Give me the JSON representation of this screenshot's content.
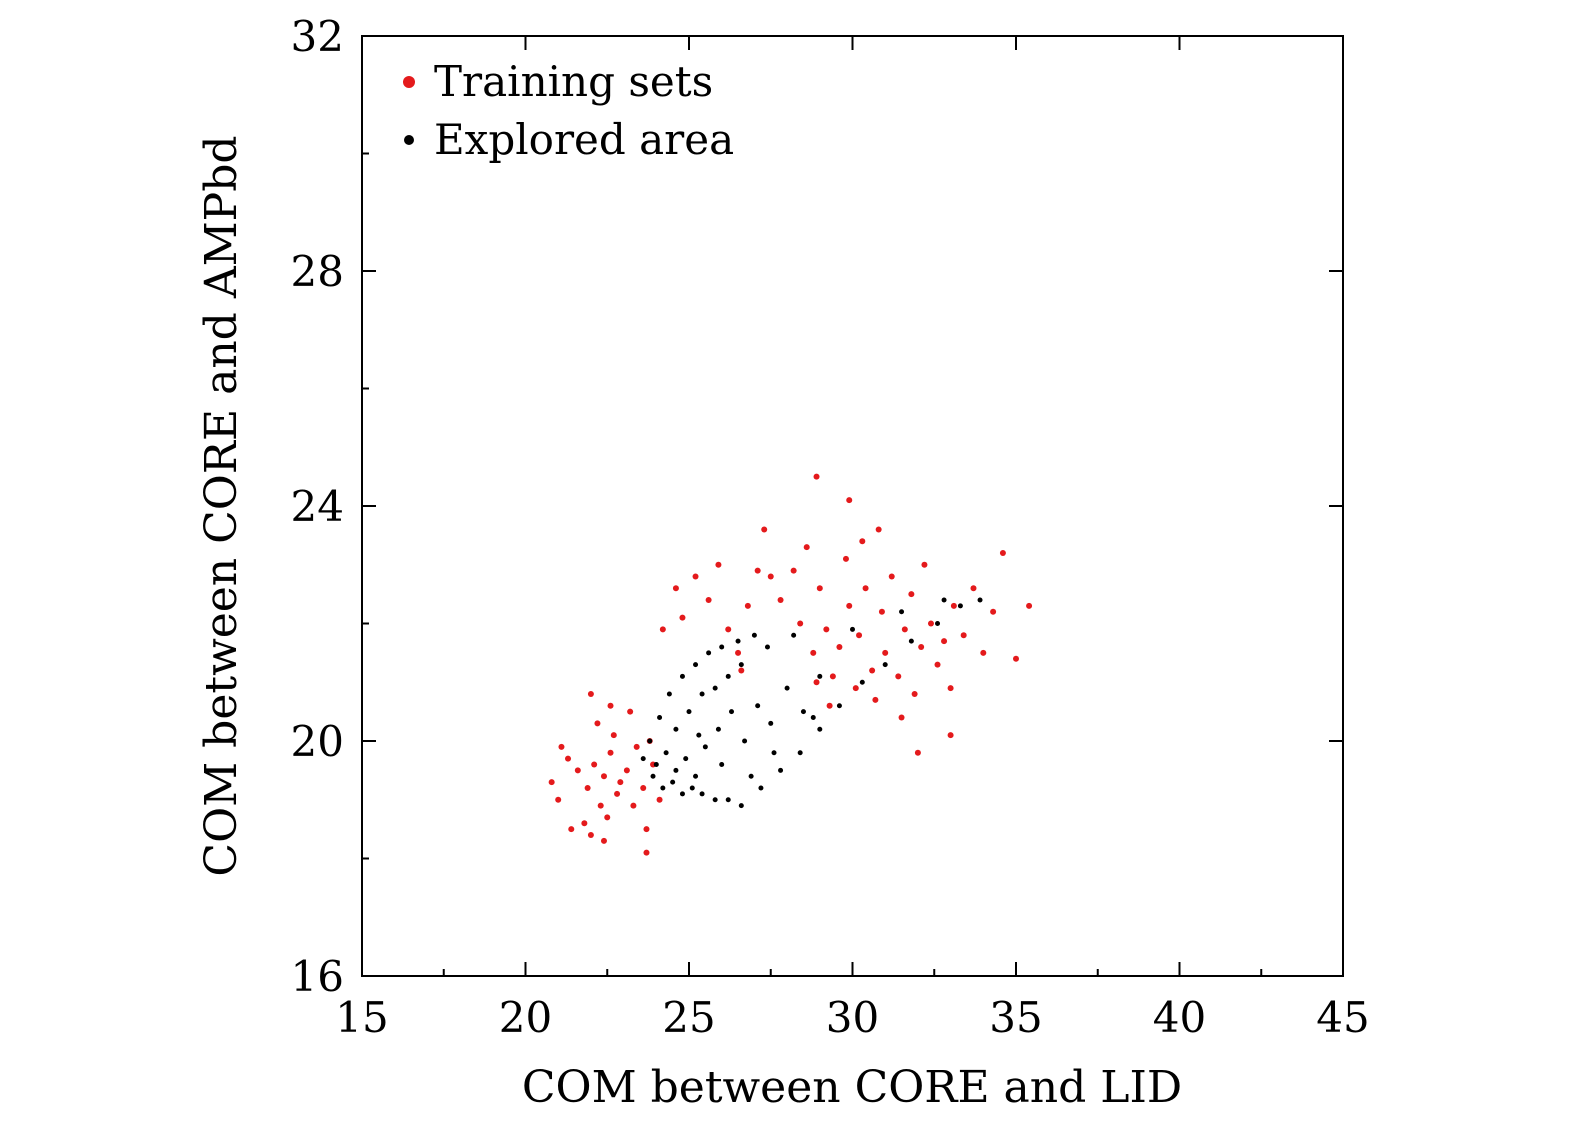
{
  "chart_data": {
    "type": "scatter",
    "xlabel": "COM between CORE and LID",
    "ylabel": "COM between CORE and AMPbd",
    "xlim": [
      15,
      45
    ],
    "ylim": [
      16,
      32
    ],
    "x_ticks": [
      15,
      20,
      25,
      30,
      35,
      40,
      45
    ],
    "x_tick_labels": [
      "15",
      "20",
      "25",
      "30",
      "35",
      "40",
      "45"
    ],
    "y_ticks": [
      16,
      20,
      24,
      28,
      32
    ],
    "y_tick_labels": [
      "16",
      "20",
      "24",
      "28",
      "32"
    ],
    "grid": false,
    "legend_position": "top-left",
    "series": [
      {
        "name": "Training sets",
        "color": "#e41a1c",
        "points": [
          [
            22.4,
            19.4
          ],
          [
            22.8,
            19.1
          ],
          [
            22.1,
            19.6
          ],
          [
            22.6,
            19.8
          ],
          [
            22.9,
            19.3
          ],
          [
            22.3,
            18.9
          ],
          [
            21.9,
            19.2
          ],
          [
            23.1,
            19.5
          ],
          [
            22.5,
            18.7
          ],
          [
            22.7,
            20.1
          ],
          [
            21.6,
            19.5
          ],
          [
            23.3,
            18.9
          ],
          [
            22.2,
            20.3
          ],
          [
            21.8,
            18.6
          ],
          [
            23.4,
            19.9
          ],
          [
            22.0,
            18.4
          ],
          [
            21.3,
            19.7
          ],
          [
            23.6,
            19.2
          ],
          [
            22.6,
            20.6
          ],
          [
            22.4,
            18.3
          ],
          [
            21.1,
            19.9
          ],
          [
            23.9,
            19.6
          ],
          [
            20.8,
            19.3
          ],
          [
            23.7,
            18.5
          ],
          [
            22.0,
            20.8
          ],
          [
            24.1,
            19.0
          ],
          [
            21.4,
            18.5
          ],
          [
            23.2,
            20.5
          ],
          [
            21.0,
            19.0
          ],
          [
            23.8,
            20.0
          ],
          [
            29.6,
            21.6
          ],
          [
            30.2,
            21.8
          ],
          [
            31.0,
            21.5
          ],
          [
            31.6,
            21.9
          ],
          [
            30.6,
            21.2
          ],
          [
            29.2,
            21.9
          ],
          [
            32.1,
            21.6
          ],
          [
            30.9,
            22.2
          ],
          [
            29.9,
            22.3
          ],
          [
            31.4,
            21.1
          ],
          [
            32.4,
            22.0
          ],
          [
            28.8,
            21.5
          ],
          [
            30.4,
            22.6
          ],
          [
            31.8,
            22.5
          ],
          [
            29.4,
            21.1
          ],
          [
            32.8,
            21.7
          ],
          [
            30.1,
            20.9
          ],
          [
            28.4,
            22.0
          ],
          [
            31.2,
            22.8
          ],
          [
            33.1,
            22.3
          ],
          [
            29.0,
            22.6
          ],
          [
            32.6,
            21.3
          ],
          [
            30.7,
            20.7
          ],
          [
            28.2,
            22.9
          ],
          [
            33.4,
            21.8
          ],
          [
            29.8,
            23.1
          ],
          [
            31.9,
            20.8
          ],
          [
            27.8,
            22.4
          ],
          [
            33.7,
            22.6
          ],
          [
            30.3,
            23.4
          ],
          [
            32.2,
            23.0
          ],
          [
            28.6,
            23.3
          ],
          [
            31.5,
            20.4
          ],
          [
            34.0,
            21.5
          ],
          [
            29.3,
            20.6
          ],
          [
            33.0,
            20.9
          ],
          [
            27.5,
            22.8
          ],
          [
            30.8,
            23.6
          ],
          [
            34.3,
            22.2
          ],
          [
            28.9,
            21.0
          ],
          [
            25.6,
            22.4
          ],
          [
            26.2,
            21.9
          ],
          [
            24.8,
            22.1
          ],
          [
            25.2,
            22.8
          ],
          [
            26.8,
            22.3
          ],
          [
            24.2,
            21.9
          ],
          [
            25.9,
            23.0
          ],
          [
            27.1,
            22.9
          ],
          [
            24.6,
            22.6
          ],
          [
            26.5,
            21.5
          ],
          [
            28.9,
            24.5
          ],
          [
            29.9,
            24.1
          ],
          [
            35.4,
            22.3
          ],
          [
            35.0,
            21.4
          ],
          [
            34.6,
            23.2
          ],
          [
            23.7,
            18.1
          ],
          [
            26.6,
            21.2
          ],
          [
            27.3,
            23.6
          ],
          [
            32.0,
            19.8
          ],
          [
            33.0,
            20.1
          ]
        ]
      },
      {
        "name": "Explored area",
        "color": "#000000",
        "points": [
          [
            23.6,
            19.7
          ],
          [
            23.9,
            19.4
          ],
          [
            24.2,
            19.2
          ],
          [
            24.5,
            19.3
          ],
          [
            24.8,
            19.1
          ],
          [
            25.1,
            19.2
          ],
          [
            25.4,
            19.1
          ],
          [
            25.8,
            19.0
          ],
          [
            26.2,
            19.0
          ],
          [
            26.6,
            18.9
          ],
          [
            27.2,
            19.2
          ],
          [
            27.8,
            19.5
          ],
          [
            28.4,
            19.8
          ],
          [
            29.0,
            20.2
          ],
          [
            29.6,
            20.6
          ],
          [
            30.3,
            21.0
          ],
          [
            31.0,
            21.3
          ],
          [
            31.8,
            21.7
          ],
          [
            32.6,
            22.0
          ],
          [
            33.3,
            22.3
          ],
          [
            33.9,
            22.4
          ],
          [
            23.8,
            20.0
          ],
          [
            24.1,
            20.4
          ],
          [
            24.4,
            20.8
          ],
          [
            24.8,
            21.1
          ],
          [
            25.2,
            21.3
          ],
          [
            25.6,
            21.5
          ],
          [
            26.0,
            21.6
          ],
          [
            26.5,
            21.7
          ],
          [
            27.0,
            21.8
          ],
          [
            24.0,
            19.6
          ],
          [
            24.3,
            19.8
          ],
          [
            24.6,
            19.5
          ],
          [
            24.9,
            19.7
          ],
          [
            25.2,
            19.4
          ],
          [
            25.5,
            19.9
          ],
          [
            25.9,
            20.2
          ],
          [
            26.3,
            20.5
          ],
          [
            26.7,
            20.0
          ],
          [
            27.1,
            20.6
          ],
          [
            27.5,
            20.3
          ],
          [
            28.0,
            20.9
          ],
          [
            28.5,
            20.5
          ],
          [
            29.0,
            21.1
          ],
          [
            24.6,
            20.2
          ],
          [
            25.0,
            20.5
          ],
          [
            25.4,
            20.8
          ],
          [
            25.8,
            20.9
          ],
          [
            26.2,
            21.1
          ],
          [
            26.6,
            21.3
          ],
          [
            27.4,
            21.6
          ],
          [
            28.2,
            21.8
          ],
          [
            30.0,
            21.9
          ],
          [
            31.5,
            22.2
          ],
          [
            32.8,
            22.4
          ],
          [
            25.3,
            20.1
          ],
          [
            26.0,
            19.6
          ],
          [
            26.9,
            19.4
          ],
          [
            27.6,
            19.8
          ],
          [
            28.8,
            20.4
          ]
        ]
      }
    ]
  }
}
